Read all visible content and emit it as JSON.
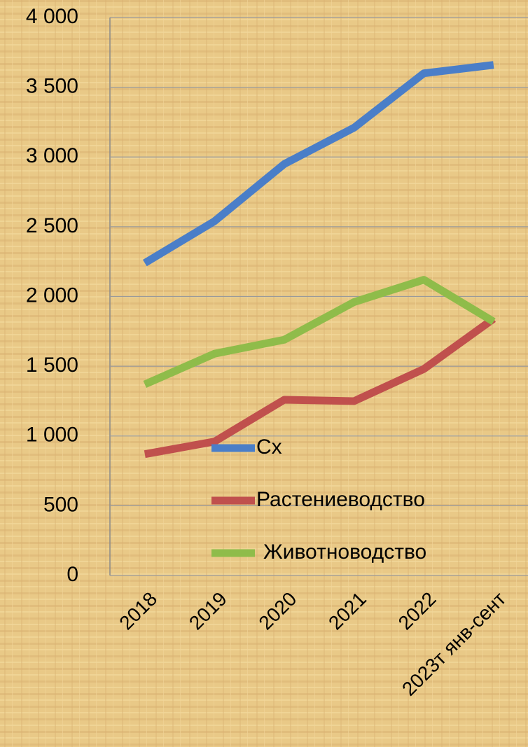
{
  "chart_data": {
    "type": "line",
    "categories": [
      "2018",
      "2019",
      "2020",
      "2021",
      "2022",
      "2023т янв-сент"
    ],
    "series": [
      {
        "name": "Сх",
        "color": "#4a7ec8",
        "values": [
          2240,
          2540,
          2950,
          3210,
          3600,
          3660
        ]
      },
      {
        "name": "Растениеводство",
        "color": "#c0504d",
        "values": [
          870,
          960,
          1260,
          1250,
          1480,
          1840
        ]
      },
      {
        "name": "Животноводство",
        "color": "#8fbc4a",
        "values": [
          1370,
          1590,
          1690,
          1960,
          2120,
          1820
        ]
      }
    ],
    "ylim": [
      0,
      4000
    ],
    "yticks": [
      0,
      500,
      {
        "value": 1000,
        "label": "1 000"
      },
      {
        "value": 1500,
        "label": "1 500"
      },
      {
        "value": 2000,
        "label": "2 000"
      },
      {
        "value": 2500,
        "label": "2 500"
      },
      {
        "value": 3000,
        "label": "3 000"
      },
      {
        "value": 3500,
        "label": "3 500"
      },
      {
        "value": 4000,
        "label": "4 000"
      }
    ],
    "grid": true,
    "legend": "inside"
  }
}
